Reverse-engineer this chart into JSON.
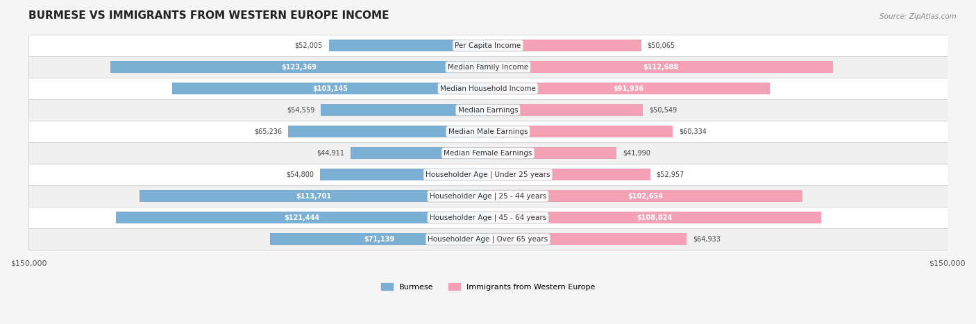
{
  "title": "BURMESE VS IMMIGRANTS FROM WESTERN EUROPE INCOME",
  "source": "Source: ZipAtlas.com",
  "categories": [
    "Per Capita Income",
    "Median Family Income",
    "Median Household Income",
    "Median Earnings",
    "Median Male Earnings",
    "Median Female Earnings",
    "Householder Age | Under 25 years",
    "Householder Age | 25 - 44 years",
    "Householder Age | 45 - 64 years",
    "Householder Age | Over 65 years"
  ],
  "burmese_values": [
    52005,
    123369,
    103145,
    54559,
    65236,
    44911,
    54800,
    113701,
    121444,
    71139
  ],
  "western_europe_values": [
    50065,
    112688,
    91936,
    50549,
    60334,
    41990,
    52957,
    102654,
    108824,
    64933
  ],
  "burmese_labels": [
    "$52,005",
    "$123,369",
    "$103,145",
    "$54,559",
    "$65,236",
    "$44,911",
    "$54,800",
    "$113,701",
    "$121,444",
    "$71,139"
  ],
  "western_europe_labels": [
    "$50,065",
    "$112,688",
    "$91,936",
    "$50,549",
    "$60,334",
    "$41,990",
    "$52,957",
    "$102,654",
    "$108,824",
    "$64,933"
  ],
  "burmese_color": "#7bafd4",
  "burmese_color_dark": "#5b9ec9",
  "western_europe_color": "#f4a0b5",
  "western_europe_color_dark": "#e8728e",
  "max_value": 150000,
  "xlim": 150000,
  "background_color": "#f5f5f5",
  "row_bg_color": "#ffffff",
  "bar_height": 0.55,
  "legend_burmese": "Burmese",
  "legend_western": "Immigrants from Western Europe"
}
